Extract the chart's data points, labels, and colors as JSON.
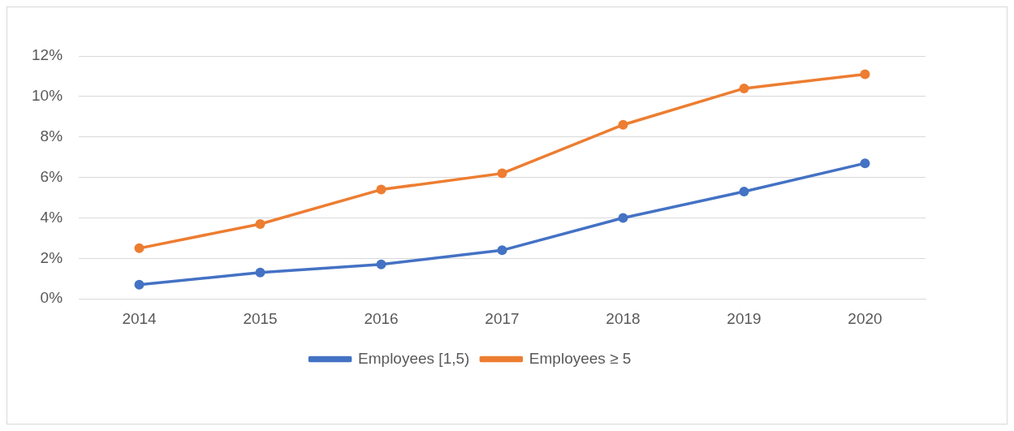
{
  "chart_data": {
    "type": "line",
    "categories": [
      "2014",
      "2015",
      "2016",
      "2017",
      "2018",
      "2019",
      "2020"
    ],
    "series": [
      {
        "name": "Employees [1,5)",
        "color": "#4472c4",
        "values": [
          0.7,
          1.3,
          1.7,
          2.4,
          4.0,
          5.3,
          6.7
        ]
      },
      {
        "name": "Employees ≥ 5",
        "color": "#ed7d31",
        "values": [
          2.5,
          3.7,
          5.4,
          6.2,
          8.6,
          10.4,
          11.1
        ]
      }
    ],
    "ylim": [
      0,
      12
    ],
    "yticks": [
      {
        "value": 0,
        "label": "0%"
      },
      {
        "value": 2,
        "label": "2%"
      },
      {
        "value": 4,
        "label": "4%"
      },
      {
        "value": 6,
        "label": "6%"
      },
      {
        "value": 8,
        "label": "8%"
      },
      {
        "value": 10,
        "label": "10%"
      },
      {
        "value": 12,
        "label": "12%"
      }
    ],
    "grid": "y",
    "legend": "bottom",
    "marker": "circle",
    "line_style": "solid"
  }
}
